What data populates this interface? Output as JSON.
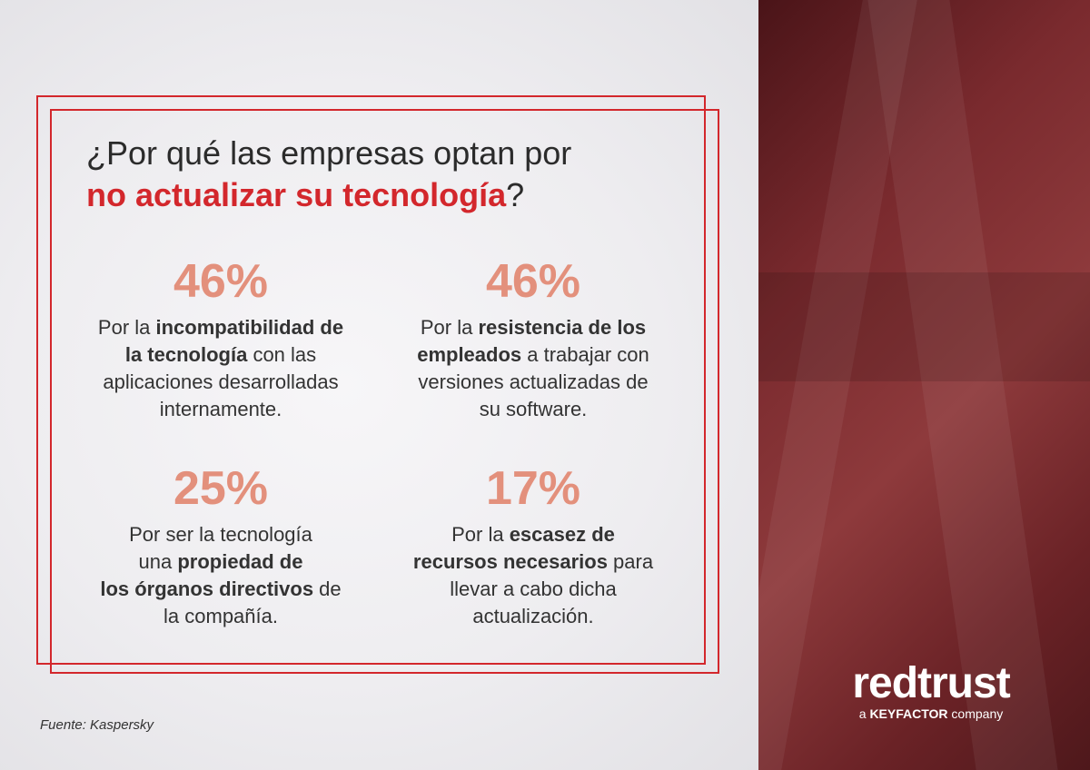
{
  "title": {
    "line1": "¿Por qué las empresas optan por",
    "highlight": "no actualizar su tecnología",
    "end": "?"
  },
  "stats": [
    {
      "value": "46%",
      "lines": [
        [
          {
            "text": "Por la ",
            "bold": false
          },
          {
            "text": "incompatibilidad de",
            "bold": true
          }
        ],
        [
          {
            "text": "la tecnología",
            "bold": true
          },
          {
            "text": " con las",
            "bold": false
          }
        ],
        [
          {
            "text": "aplicaciones desarrolladas",
            "bold": false
          }
        ],
        [
          {
            "text": "internamente.",
            "bold": false
          }
        ]
      ]
    },
    {
      "value": "46%",
      "lines": [
        [
          {
            "text": "Por la ",
            "bold": false
          },
          {
            "text": "resistencia de los",
            "bold": true
          }
        ],
        [
          {
            "text": "empleados",
            "bold": true
          },
          {
            "text": " a trabajar con",
            "bold": false
          }
        ],
        [
          {
            "text": "versiones actualizadas de",
            "bold": false
          }
        ],
        [
          {
            "text": "su software.",
            "bold": false
          }
        ]
      ]
    },
    {
      "value": "25%",
      "lines": [
        [
          {
            "text": "Por ser la tecnología",
            "bold": false
          }
        ],
        [
          {
            "text": "una ",
            "bold": false
          },
          {
            "text": "propiedad de",
            "bold": true
          }
        ],
        [
          {
            "text": "los órganos directivos",
            "bold": true
          },
          {
            "text": " de",
            "bold": false
          }
        ],
        [
          {
            "text": "la compañía.",
            "bold": false
          }
        ]
      ]
    },
    {
      "value": "17%",
      "lines": [
        [
          {
            "text": "Por la ",
            "bold": false
          },
          {
            "text": "escasez de",
            "bold": true
          }
        ],
        [
          {
            "text": "recursos necesarios",
            "bold": true
          },
          {
            "text": " para",
            "bold": false
          }
        ],
        [
          {
            "text": "llevar a cabo dicha",
            "bold": false
          }
        ],
        [
          {
            "text": "actualización.",
            "bold": false
          }
        ]
      ]
    }
  ],
  "source": "Fuente: Kaspersky",
  "logo": {
    "name": "redtrust",
    "prefix": "a ",
    "company": "KEYFACTOR",
    "suffix": " company"
  }
}
